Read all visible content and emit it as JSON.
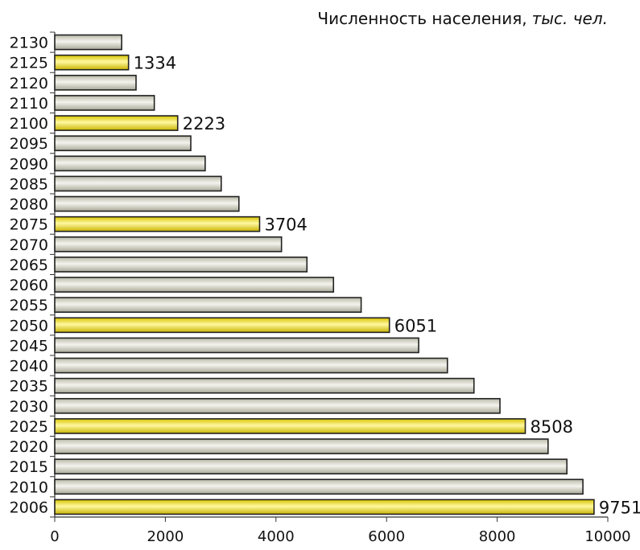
{
  "chart_data": {
    "type": "bar",
    "orientation": "horizontal",
    "title": "Численность населения,",
    "title_unit": "тыс. чел.",
    "categories": [
      "2130",
      "2125",
      "2120",
      "2110",
      "2100",
      "2095",
      "2090",
      "2085",
      "2080",
      "2075",
      "2070",
      "2065",
      "2060",
      "2055",
      "2050",
      "2045",
      "2040",
      "2035",
      "2030",
      "2025",
      "2020",
      "2015",
      "2010",
      "2006"
    ],
    "values": [
      1210,
      1334,
      1470,
      1800,
      2223,
      2460,
      2720,
      3010,
      3330,
      3704,
      4100,
      4560,
      5040,
      5540,
      6051,
      6580,
      7100,
      7580,
      8050,
      8508,
      8920,
      9260,
      9550,
      9751
    ],
    "highlighted": [
      "2125",
      "2100",
      "2075",
      "2050",
      "2025",
      "2006"
    ],
    "data_labels": [
      {
        "category": "2125",
        "text": "1334"
      },
      {
        "category": "2100",
        "text": "2223"
      },
      {
        "category": "2075",
        "text": "3704"
      },
      {
        "category": "2050",
        "text": "6051"
      },
      {
        "category": "2025",
        "text": "8508"
      },
      {
        "category": "2006",
        "text": "9751"
      }
    ],
    "xlim": [
      0,
      10000
    ],
    "xticks": [
      "0",
      "2000",
      "4000",
      "6000",
      "8000",
      "10000"
    ],
    "xtick_values": [
      0,
      2000,
      4000,
      6000,
      8000,
      10000
    ],
    "grid": false,
    "colors": {
      "bar_gray_light": "#f4f4ee",
      "bar_gray_dark": "#b8b8a8",
      "bar_yellow_light": "#fff8a0",
      "bar_yellow_dark": "#d8c400",
      "bar_outline": "#222222",
      "axis": "#333333"
    }
  }
}
